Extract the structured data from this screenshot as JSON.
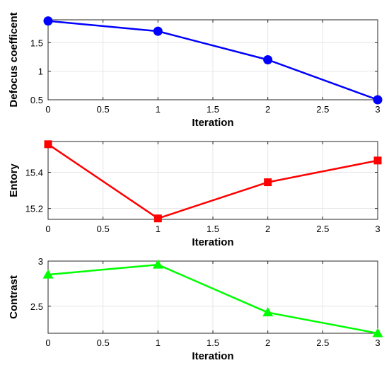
{
  "chart_data": [
    {
      "type": "line",
      "xlabel": "Iteration",
      "ylabel": "Defocus coefficent",
      "xlim": [
        0,
        3
      ],
      "ylim": [
        0.5,
        1.9
      ],
      "xticks": [
        0,
        0.5,
        1,
        1.5,
        2,
        2.5,
        3
      ],
      "xtick_labels": [
        "0",
        "0.5",
        "1",
        "1.5",
        "2",
        "2.5",
        "3"
      ],
      "yticks": [
        0.5,
        1,
        1.5
      ],
      "ytick_labels": [
        "0.5",
        "1",
        "1.5"
      ],
      "grid": true,
      "series": [
        {
          "color": "#0000ff",
          "marker": "circle",
          "x": [
            0,
            1,
            2,
            3
          ],
          "y": [
            1.88,
            1.7,
            1.2,
            0.5
          ]
        }
      ]
    },
    {
      "type": "line",
      "xlabel": "Iteration",
      "ylabel": "Entory",
      "xlim": [
        0,
        3
      ],
      "ylim": [
        15.14,
        15.57
      ],
      "xticks": [
        0,
        0.5,
        1,
        1.5,
        2,
        2.5,
        3
      ],
      "xtick_labels": [
        "0",
        "0.5",
        "1",
        "1.5",
        "2",
        "2.5",
        "3"
      ],
      "yticks": [
        15.2,
        15.4
      ],
      "ytick_labels": [
        "15.2",
        "15.4"
      ],
      "grid": true,
      "series": [
        {
          "color": "#ff0000",
          "marker": "square",
          "x": [
            0,
            1,
            2,
            3
          ],
          "y": [
            15.555,
            15.145,
            15.345,
            15.465
          ]
        }
      ]
    },
    {
      "type": "line",
      "xlabel": "Iteration",
      "ylabel": "Contrast",
      "xlim": [
        0,
        3
      ],
      "ylim": [
        2.2,
        3.0
      ],
      "xticks": [
        0,
        0.5,
        1,
        1.5,
        2,
        2.5,
        3
      ],
      "xtick_labels": [
        "0",
        "0.5",
        "1",
        "1.5",
        "2",
        "2.5",
        "3"
      ],
      "yticks": [
        2.5,
        3
      ],
      "ytick_labels": [
        "2.5",
        "3"
      ],
      "grid": true,
      "series": [
        {
          "color": "#00ff00",
          "marker": "triangle",
          "x": [
            0,
            1,
            2,
            3
          ],
          "y": [
            2.85,
            2.96,
            2.43,
            2.2
          ]
        }
      ]
    }
  ]
}
